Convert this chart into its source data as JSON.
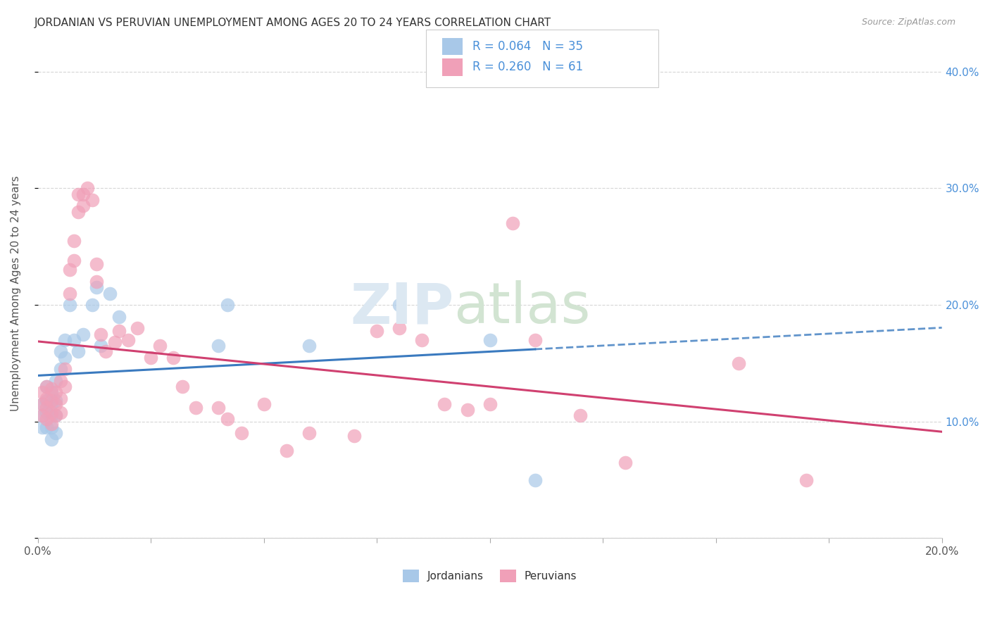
{
  "title": "JORDANIAN VS PERUVIAN UNEMPLOYMENT AMONG AGES 20 TO 24 YEARS CORRELATION CHART",
  "source": "Source: ZipAtlas.com",
  "ylabel": "Unemployment Among Ages 20 to 24 years",
  "xmin": 0.0,
  "xmax": 0.2,
  "ymin": 0.0,
  "ymax": 0.42,
  "yticks": [
    0.0,
    0.1,
    0.2,
    0.3,
    0.4
  ],
  "ytick_labels": [
    "",
    "10.0%",
    "20.0%",
    "30.0%",
    "40.0%"
  ],
  "xticks": [
    0.0,
    0.025,
    0.05,
    0.075,
    0.1,
    0.125,
    0.15,
    0.175,
    0.2
  ],
  "jordanians_color": "#a8c8e8",
  "peruvians_color": "#f0a0b8",
  "jordan_R": 0.064,
  "jordan_N": 35,
  "peru_R": 0.26,
  "peru_N": 61,
  "legend_color": "#4a90d9",
  "jordan_line_color": "#3a7abf",
  "peru_line_color": "#d04070",
  "jordanians_x": [
    0.001,
    0.001,
    0.001,
    0.002,
    0.002,
    0.002,
    0.002,
    0.003,
    0.003,
    0.003,
    0.003,
    0.003,
    0.004,
    0.004,
    0.004,
    0.004,
    0.005,
    0.005,
    0.006,
    0.006,
    0.007,
    0.008,
    0.009,
    0.01,
    0.012,
    0.013,
    0.014,
    0.016,
    0.018,
    0.04,
    0.042,
    0.06,
    0.08,
    0.1,
    0.11
  ],
  "jordanians_y": [
    0.115,
    0.105,
    0.095,
    0.13,
    0.118,
    0.108,
    0.095,
    0.125,
    0.115,
    0.105,
    0.095,
    0.085,
    0.135,
    0.118,
    0.105,
    0.09,
    0.16,
    0.145,
    0.17,
    0.155,
    0.2,
    0.17,
    0.16,
    0.175,
    0.2,
    0.215,
    0.165,
    0.21,
    0.19,
    0.165,
    0.2,
    0.165,
    0.2,
    0.17,
    0.05
  ],
  "peruvians_x": [
    0.001,
    0.001,
    0.001,
    0.002,
    0.002,
    0.002,
    0.002,
    0.003,
    0.003,
    0.003,
    0.003,
    0.004,
    0.004,
    0.004,
    0.005,
    0.005,
    0.005,
    0.006,
    0.006,
    0.007,
    0.007,
    0.008,
    0.008,
    0.009,
    0.009,
    0.01,
    0.01,
    0.011,
    0.012,
    0.013,
    0.013,
    0.014,
    0.015,
    0.017,
    0.018,
    0.02,
    0.022,
    0.025,
    0.027,
    0.03,
    0.032,
    0.035,
    0.04,
    0.042,
    0.045,
    0.05,
    0.055,
    0.06,
    0.07,
    0.075,
    0.08,
    0.085,
    0.09,
    0.095,
    0.1,
    0.105,
    0.11,
    0.12,
    0.13,
    0.155,
    0.17
  ],
  "peruvians_y": [
    0.125,
    0.115,
    0.105,
    0.13,
    0.12,
    0.112,
    0.102,
    0.128,
    0.118,
    0.108,
    0.098,
    0.125,
    0.115,
    0.105,
    0.135,
    0.12,
    0.108,
    0.145,
    0.13,
    0.23,
    0.21,
    0.255,
    0.238,
    0.295,
    0.28,
    0.295,
    0.285,
    0.3,
    0.29,
    0.235,
    0.22,
    0.175,
    0.16,
    0.168,
    0.178,
    0.17,
    0.18,
    0.155,
    0.165,
    0.155,
    0.13,
    0.112,
    0.112,
    0.102,
    0.09,
    0.115,
    0.075,
    0.09,
    0.088,
    0.178,
    0.18,
    0.17,
    0.115,
    0.11,
    0.115,
    0.27,
    0.17,
    0.105,
    0.065,
    0.15,
    0.05
  ]
}
